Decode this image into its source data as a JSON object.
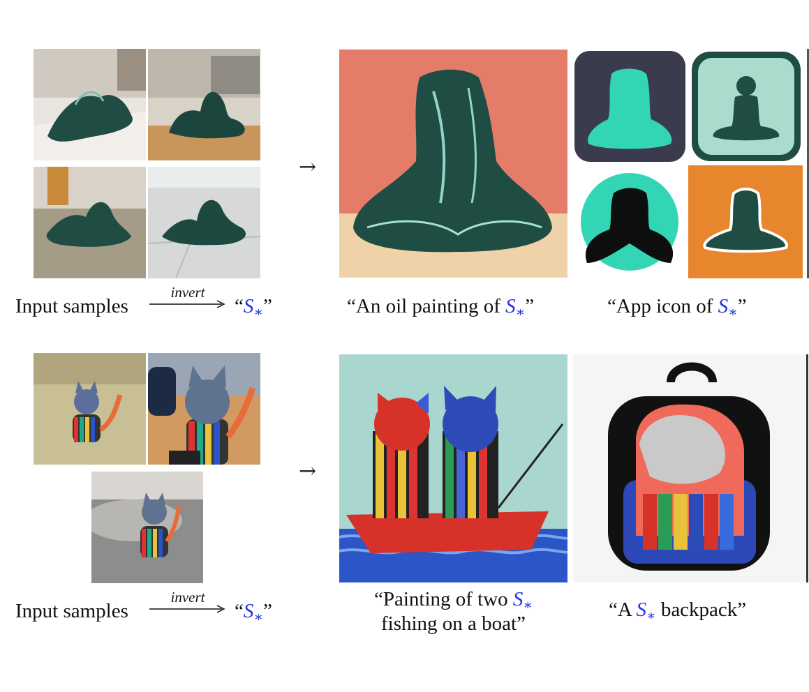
{
  "rows": [
    {
      "input_label": "Input samples",
      "invert_label": "invert",
      "token_open": "“",
      "token_base": "S",
      "token_sub": "∗",
      "token_close": "”",
      "prompts": [
        {
          "text_before": "“An oil painting of ",
          "token_base": "S",
          "token_sub": "∗",
          "text_after": "”"
        },
        {
          "text_before": "“App icon of ",
          "token_base": "S",
          "token_sub": "∗",
          "text_after": "”"
        }
      ]
    },
    {
      "input_label": "Input samples",
      "invert_label": "invert",
      "token_open": "“",
      "token_base": "S",
      "token_sub": "∗",
      "token_close": "”",
      "prompts": [
        {
          "text_before": "“Painting of two ",
          "token_base": "S",
          "token_sub": "∗",
          "line2": "fishing on a boat”"
        },
        {
          "text_before": "“A ",
          "token_base": "S",
          "token_sub": "∗",
          "text_after": " backpack”"
        }
      ]
    }
  ],
  "arrow_glyph": "→",
  "colors": {
    "token_blue": "#2233dd",
    "statue_green": "#1f4d44",
    "painting_bg": "#e57c6a",
    "icon_teal": "#33d6b4",
    "icon_orange": "#e8862e"
  }
}
